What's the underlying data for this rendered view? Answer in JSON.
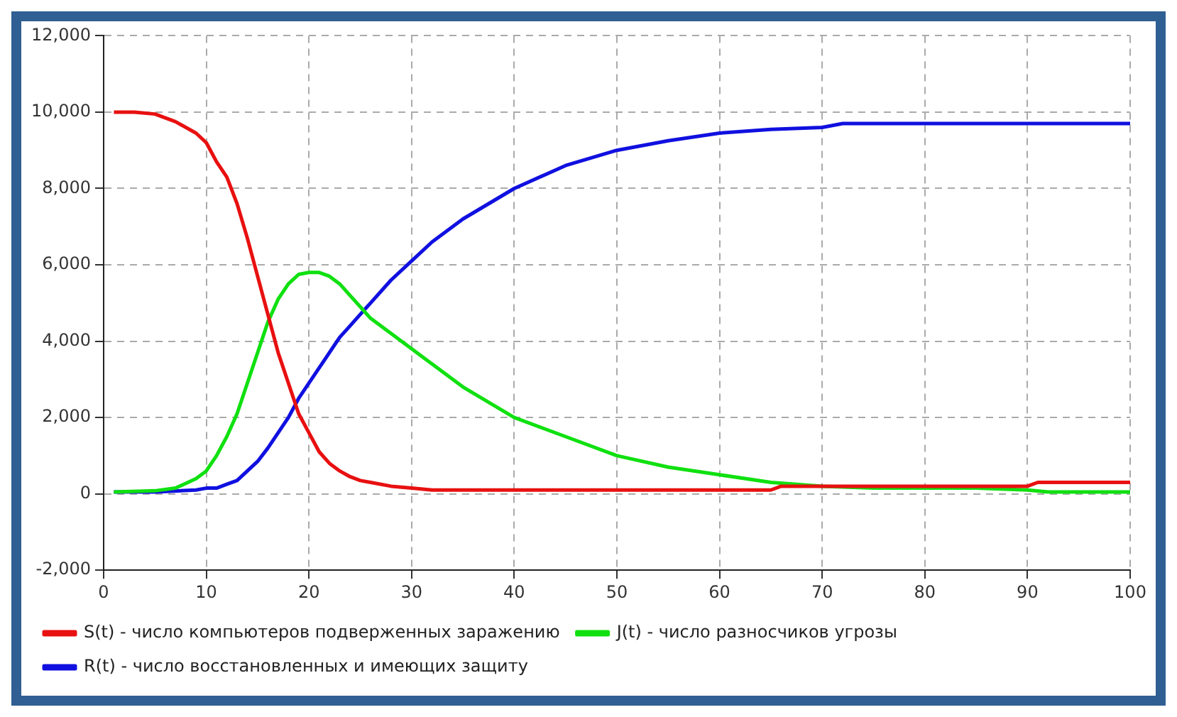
{
  "chart_data": {
    "type": "line",
    "xlim": [
      0,
      100
    ],
    "xticks": [
      0,
      10,
      20,
      30,
      40,
      50,
      60,
      70,
      80,
      90,
      100
    ],
    "ylim": [
      -2000,
      12000
    ],
    "yticks": [
      {
        "value": -2000,
        "label": "-2,000"
      },
      0,
      {
        "value": 2000,
        "label": "2,000"
      },
      {
        "value": 4000,
        "label": "4,000"
      },
      {
        "value": 6000,
        "label": "6,000"
      },
      {
        "value": 8000,
        "label": "8,000"
      },
      {
        "value": 10000,
        "label": "10,000"
      },
      {
        "value": 12000,
        "label": "12,000"
      }
    ],
    "grid": true,
    "legend": "bottom",
    "marker": "none",
    "line_style": "solid",
    "series": [
      {
        "name": "S(t) - число компьютеров подверженных заражению",
        "color": "#e81010",
        "x": [
          1,
          3,
          5,
          7,
          9,
          10,
          11,
          12,
          13,
          14,
          15,
          16,
          17,
          18,
          19,
          20,
          21,
          22,
          23,
          24,
          25,
          26,
          28,
          30,
          32,
          35,
          40,
          50,
          60,
          65,
          66,
          70,
          80,
          90,
          91,
          100
        ],
        "values": [
          10000,
          10000,
          9950,
          9750,
          9450,
          9200,
          8700,
          8300,
          7600,
          6700,
          5700,
          4700,
          3700,
          2900,
          2100,
          1600,
          1100,
          800,
          600,
          450,
          350,
          300,
          200,
          150,
          100,
          100,
          100,
          100,
          100,
          100,
          200,
          200,
          200,
          200,
          300,
          300
        ]
      },
      {
        "name": "J(t) - число разносчиков угрозы",
        "color": "#10e010",
        "x": [
          1,
          5,
          7,
          9,
          10,
          11,
          12,
          13,
          14,
          15,
          16,
          17,
          18,
          19,
          20,
          21,
          22,
          23,
          24,
          25,
          26,
          28,
          30,
          32,
          35,
          40,
          45,
          50,
          55,
          60,
          65,
          70,
          75,
          80,
          85,
          90,
          92,
          100
        ],
        "values": [
          50,
          80,
          150,
          400,
          600,
          1000,
          1500,
          2100,
          2900,
          3700,
          4500,
          5100,
          5500,
          5750,
          5800,
          5800,
          5700,
          5500,
          5200,
          4900,
          4600,
          4200,
          3800,
          3400,
          2800,
          2000,
          1500,
          1000,
          700,
          500,
          300,
          200,
          150,
          150,
          150,
          100,
          50,
          50
        ]
      },
      {
        "name": "R(t) - число восстановленных и имеющих защиту",
        "color": "#1010e0",
        "x": [
          1,
          5,
          9,
          10,
          11,
          12,
          13,
          14,
          15,
          16,
          17,
          18,
          19,
          20,
          21,
          22,
          23,
          24,
          25,
          26,
          28,
          30,
          32,
          35,
          40,
          45,
          50,
          55,
          60,
          65,
          70,
          72,
          100
        ],
        "values": [
          50,
          50,
          100,
          150,
          150,
          250,
          350,
          600,
          850,
          1200,
          1600,
          2000,
          2500,
          2900,
          3300,
          3700,
          4100,
          4400,
          4700,
          5000,
          5600,
          6100,
          6600,
          7200,
          8000,
          8600,
          9000,
          9250,
          9450,
          9550,
          9600,
          9700,
          9700
        ]
      }
    ]
  }
}
